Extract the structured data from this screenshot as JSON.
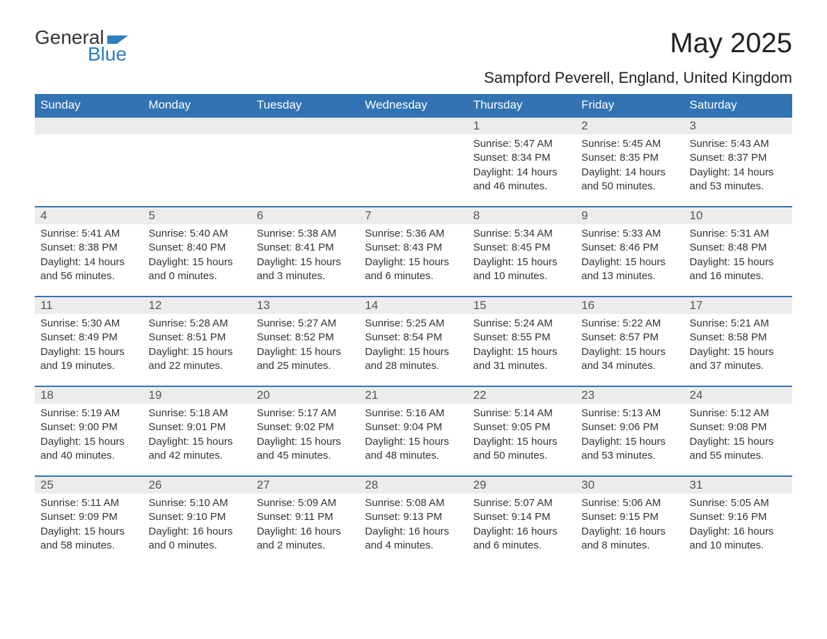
{
  "brand": {
    "line1": "General",
    "line2": "Blue",
    "icon_color": "#2f7fbf"
  },
  "title": "May 2025",
  "location": "Sampford Peverell, England, United Kingdom",
  "theme": {
    "header_bg": "#3173b3",
    "header_fg": "#ffffff",
    "daynum_bg": "#ececec",
    "rule_color": "#3173b3",
    "text_color": "#333333"
  },
  "weekdays": [
    "Sunday",
    "Monday",
    "Tuesday",
    "Wednesday",
    "Thursday",
    "Friday",
    "Saturday"
  ],
  "weeks": [
    [
      null,
      null,
      null,
      null,
      {
        "n": "1",
        "sr": "5:47 AM",
        "ss": "8:34 PM",
        "dl": "14 hours and 46 minutes."
      },
      {
        "n": "2",
        "sr": "5:45 AM",
        "ss": "8:35 PM",
        "dl": "14 hours and 50 minutes."
      },
      {
        "n": "3",
        "sr": "5:43 AM",
        "ss": "8:37 PM",
        "dl": "14 hours and 53 minutes."
      }
    ],
    [
      {
        "n": "4",
        "sr": "5:41 AM",
        "ss": "8:38 PM",
        "dl": "14 hours and 56 minutes."
      },
      {
        "n": "5",
        "sr": "5:40 AM",
        "ss": "8:40 PM",
        "dl": "15 hours and 0 minutes."
      },
      {
        "n": "6",
        "sr": "5:38 AM",
        "ss": "8:41 PM",
        "dl": "15 hours and 3 minutes."
      },
      {
        "n": "7",
        "sr": "5:36 AM",
        "ss": "8:43 PM",
        "dl": "15 hours and 6 minutes."
      },
      {
        "n": "8",
        "sr": "5:34 AM",
        "ss": "8:45 PM",
        "dl": "15 hours and 10 minutes."
      },
      {
        "n": "9",
        "sr": "5:33 AM",
        "ss": "8:46 PM",
        "dl": "15 hours and 13 minutes."
      },
      {
        "n": "10",
        "sr": "5:31 AM",
        "ss": "8:48 PM",
        "dl": "15 hours and 16 minutes."
      }
    ],
    [
      {
        "n": "11",
        "sr": "5:30 AM",
        "ss": "8:49 PM",
        "dl": "15 hours and 19 minutes."
      },
      {
        "n": "12",
        "sr": "5:28 AM",
        "ss": "8:51 PM",
        "dl": "15 hours and 22 minutes."
      },
      {
        "n": "13",
        "sr": "5:27 AM",
        "ss": "8:52 PM",
        "dl": "15 hours and 25 minutes."
      },
      {
        "n": "14",
        "sr": "5:25 AM",
        "ss": "8:54 PM",
        "dl": "15 hours and 28 minutes."
      },
      {
        "n": "15",
        "sr": "5:24 AM",
        "ss": "8:55 PM",
        "dl": "15 hours and 31 minutes."
      },
      {
        "n": "16",
        "sr": "5:22 AM",
        "ss": "8:57 PM",
        "dl": "15 hours and 34 minutes."
      },
      {
        "n": "17",
        "sr": "5:21 AM",
        "ss": "8:58 PM",
        "dl": "15 hours and 37 minutes."
      }
    ],
    [
      {
        "n": "18",
        "sr": "5:19 AM",
        "ss": "9:00 PM",
        "dl": "15 hours and 40 minutes."
      },
      {
        "n": "19",
        "sr": "5:18 AM",
        "ss": "9:01 PM",
        "dl": "15 hours and 42 minutes."
      },
      {
        "n": "20",
        "sr": "5:17 AM",
        "ss": "9:02 PM",
        "dl": "15 hours and 45 minutes."
      },
      {
        "n": "21",
        "sr": "5:16 AM",
        "ss": "9:04 PM",
        "dl": "15 hours and 48 minutes."
      },
      {
        "n": "22",
        "sr": "5:14 AM",
        "ss": "9:05 PM",
        "dl": "15 hours and 50 minutes."
      },
      {
        "n": "23",
        "sr": "5:13 AM",
        "ss": "9:06 PM",
        "dl": "15 hours and 53 minutes."
      },
      {
        "n": "24",
        "sr": "5:12 AM",
        "ss": "9:08 PM",
        "dl": "15 hours and 55 minutes."
      }
    ],
    [
      {
        "n": "25",
        "sr": "5:11 AM",
        "ss": "9:09 PM",
        "dl": "15 hours and 58 minutes."
      },
      {
        "n": "26",
        "sr": "5:10 AM",
        "ss": "9:10 PM",
        "dl": "16 hours and 0 minutes."
      },
      {
        "n": "27",
        "sr": "5:09 AM",
        "ss": "9:11 PM",
        "dl": "16 hours and 2 minutes."
      },
      {
        "n": "28",
        "sr": "5:08 AM",
        "ss": "9:13 PM",
        "dl": "16 hours and 4 minutes."
      },
      {
        "n": "29",
        "sr": "5:07 AM",
        "ss": "9:14 PM",
        "dl": "16 hours and 6 minutes."
      },
      {
        "n": "30",
        "sr": "5:06 AM",
        "ss": "9:15 PM",
        "dl": "16 hours and 8 minutes."
      },
      {
        "n": "31",
        "sr": "5:05 AM",
        "ss": "9:16 PM",
        "dl": "16 hours and 10 minutes."
      }
    ]
  ],
  "labels": {
    "sunrise": "Sunrise: ",
    "sunset": "Sunset: ",
    "daylight": "Daylight: "
  }
}
